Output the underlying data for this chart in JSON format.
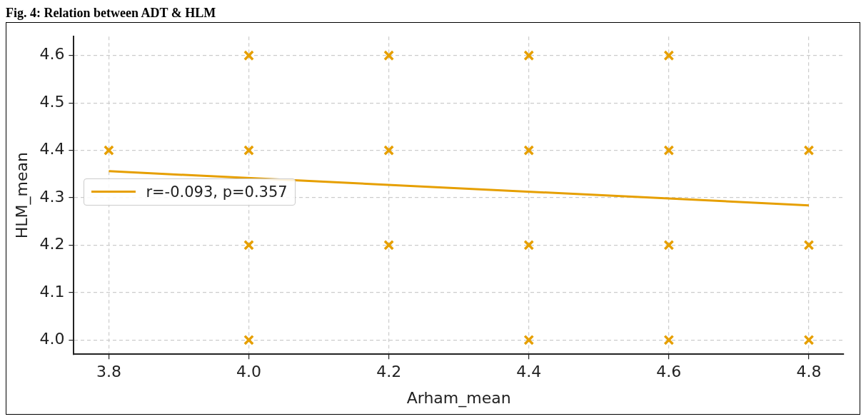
{
  "chart_data": {
    "type": "scatter",
    "title": "Fig. 4: Relation between ADT & HLM",
    "xlabel": "Arham_mean",
    "ylabel": "HLM_mean",
    "xlim": [
      3.75,
      4.85
    ],
    "ylim": [
      3.97,
      4.64
    ],
    "xticks": [
      {
        "value": 3.8,
        "label": "3.8"
      },
      {
        "value": 4.0,
        "label": "4.0"
      },
      {
        "value": 4.2,
        "label": "4.2"
      },
      {
        "value": 4.4,
        "label": "4.4"
      },
      {
        "value": 4.6,
        "label": "4.6"
      },
      {
        "value": 4.8,
        "label": "4.8"
      }
    ],
    "yticks": [
      {
        "value": 4.0,
        "label": "4.0"
      },
      {
        "value": 4.1,
        "label": "4.1"
      },
      {
        "value": 4.2,
        "label": "4.2"
      },
      {
        "value": 4.3,
        "label": "4.3"
      },
      {
        "value": 4.4,
        "label": "4.4"
      },
      {
        "value": 4.5,
        "label": "4.5"
      },
      {
        "value": 4.6,
        "label": "4.6"
      }
    ],
    "grid": true,
    "legend": "center left",
    "marker": "cross",
    "series": [
      {
        "color": "#e69f00",
        "x": [
          4.0,
          4.2,
          4.4,
          4.6,
          3.8,
          4.0,
          4.2,
          4.4,
          4.6,
          4.8,
          4.0,
          4.2,
          4.4,
          4.6,
          4.8,
          4.0,
          4.4,
          4.6,
          4.8
        ],
        "values": [
          4.6,
          4.6,
          4.6,
          4.6,
          4.4,
          4.4,
          4.4,
          4.4,
          4.4,
          4.4,
          4.2,
          4.2,
          4.2,
          4.2,
          4.2,
          4.0,
          4.0,
          4.0,
          4.0
        ]
      },
      {
        "type": "line",
        "name": "r=-0.093, p=0.357",
        "color": "#e69f00",
        "x": [
          3.8,
          4.8
        ],
        "values": [
          4.356,
          4.284
        ],
        "marker": "none",
        "line_style": "solid"
      }
    ]
  }
}
